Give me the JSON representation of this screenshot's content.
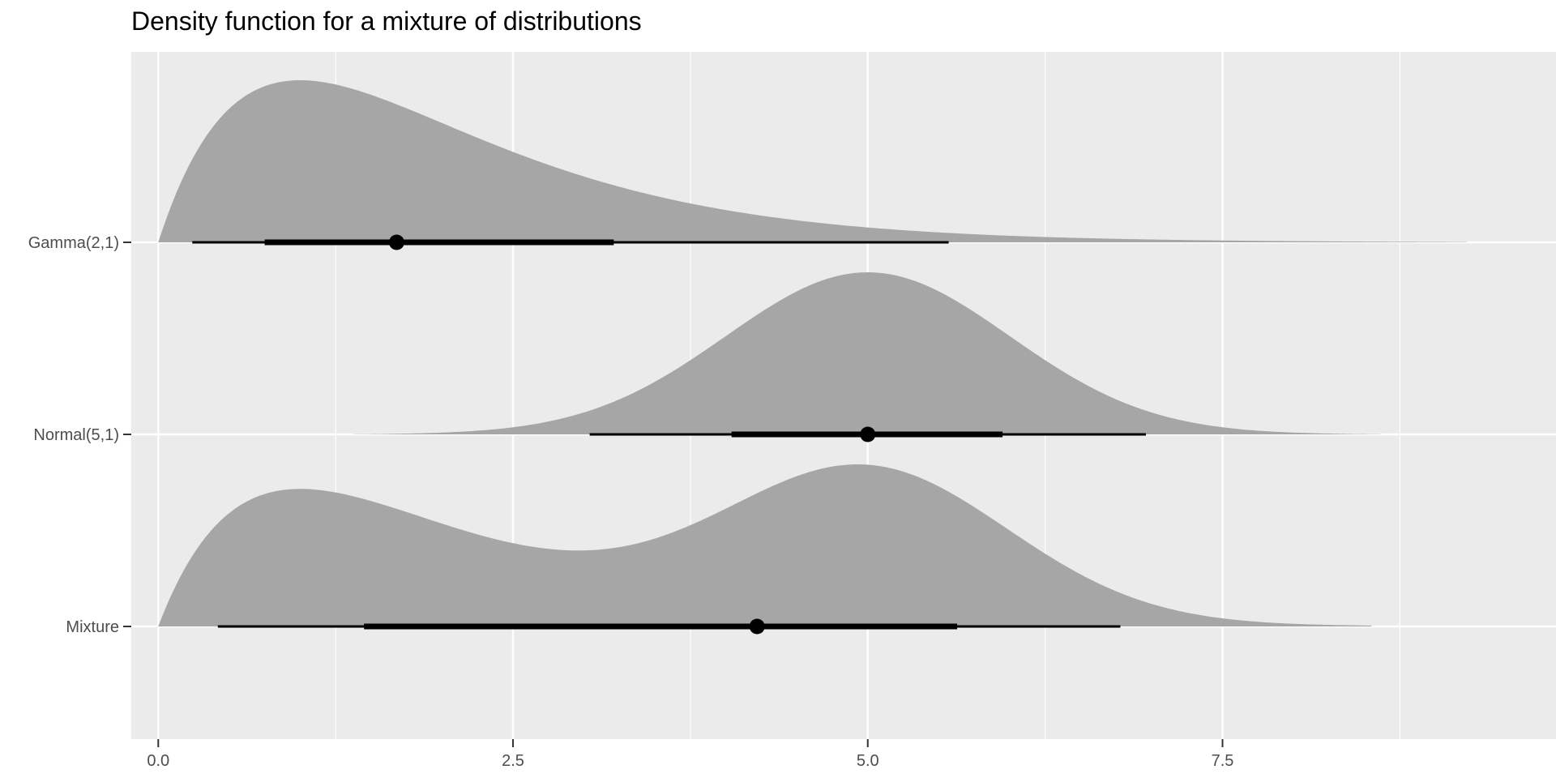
{
  "chart_data": {
    "type": "halfeye",
    "title": "Density function for a mixture of distributions",
    "xlabel": "",
    "ylabel": "",
    "xlim": [
      -0.19,
      9.85
    ],
    "x_ticks": [
      0.0,
      2.5,
      5.0,
      7.5
    ],
    "x_tick_labels": [
      "0.0",
      "2.5",
      "5.0",
      "7.5"
    ],
    "grid": true,
    "panel_background": "#ebebeb",
    "fill_color": "#a6a6a6",
    "interval_color": "#000000",
    "categories": [
      "Gamma(2,1)",
      "Normal(5,1)",
      "Mixture"
    ],
    "series": [
      {
        "name": "Gamma(2,1)",
        "density": "gamma",
        "shape": 2,
        "rate": 1,
        "support": [
          0.0,
          9.22
        ],
        "point": 1.68,
        "interval_66": [
          0.75,
          3.21
        ],
        "interval_95": [
          0.24,
          5.57
        ]
      },
      {
        "name": "Normal(5,1)",
        "density": "normal",
        "mean": 5,
        "sd": 1,
        "support": [
          1.37,
          8.62
        ],
        "point": 5.0,
        "interval_66": [
          4.04,
          5.95
        ],
        "interval_95": [
          3.04,
          6.96
        ]
      },
      {
        "name": "Mixture",
        "density": "mixture",
        "components": [
          "Gamma(2,1)",
          "Normal(5,1)"
        ],
        "weights": [
          0.5,
          0.5
        ],
        "support": [
          0.0,
          8.55
        ],
        "point": 4.22,
        "interval_66": [
          1.45,
          5.63
        ],
        "interval_95": [
          0.42,
          6.78
        ]
      }
    ]
  }
}
